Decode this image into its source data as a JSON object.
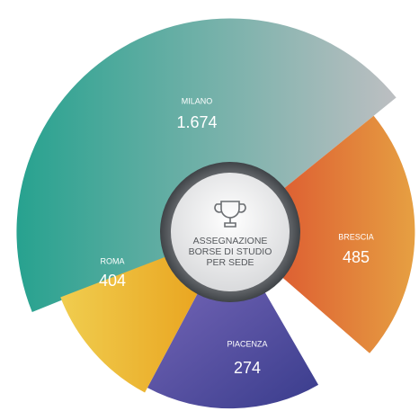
{
  "chart_data": {
    "type": "polar-area",
    "title": [
      "ASSEGNAZIONE",
      "BORSE DI STUDIO",
      "PER SEDE"
    ],
    "categories": [
      "MILANO",
      "BRESCIA",
      "PIACENZA",
      "ROMA"
    ],
    "values": [
      1674,
      485,
      274,
      404
    ],
    "value_labels": [
      "1.674",
      "485",
      "274",
      "404"
    ],
    "colors": [
      [
        "#27a28f",
        "#bdbfc2"
      ],
      [
        "#dd5a31",
        "#e6a042"
      ],
      [
        "#7566b7",
        "#393c8c"
      ],
      [
        "#f0cd4f",
        "#e9a41f"
      ]
    ]
  }
}
